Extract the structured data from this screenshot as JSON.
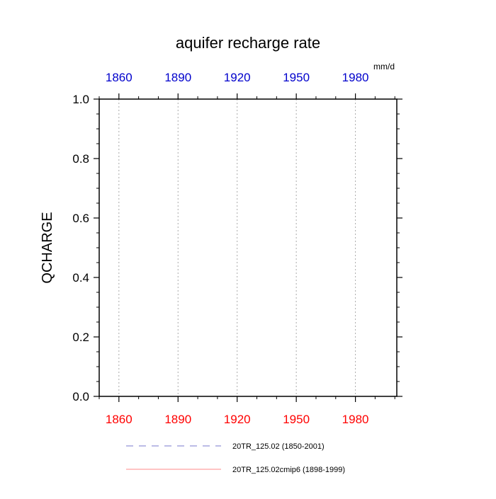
{
  "chart_data": {
    "type": "line",
    "title": "aquifer recharge rate",
    "units": "mm/d",
    "ylabel": "QCHARGE",
    "xlabel": "",
    "xlim": [
      1850,
      2001
    ],
    "ylim": [
      0,
      1.0
    ],
    "y_ticks": [
      0.0,
      0.2,
      0.4,
      0.6,
      0.8,
      1.0
    ],
    "y_tick_labels": [
      "0.0",
      "0.2",
      "0.4",
      "0.6",
      "0.8",
      "1.0"
    ],
    "y_minor_step": 0.05,
    "bottom_axis": {
      "ticks": [
        1860,
        1890,
        1920,
        1950,
        1980
      ],
      "labels": [
        "1860",
        "1890",
        "1920",
        "1950",
        "1980"
      ],
      "minor_step": 10,
      "color": "#ff0000"
    },
    "top_axis": {
      "ticks": [
        1860,
        1890,
        1920,
        1950,
        1980
      ],
      "labels": [
        "1860",
        "1890",
        "1920",
        "1950",
        "1980"
      ],
      "minor_step": 10,
      "color": "#0000cc"
    },
    "vertical_grid": true,
    "vertical_grid_at": [
      1860,
      1890,
      1920,
      1950,
      1980
    ],
    "legend_placement": "bottom",
    "series": [
      {
        "name": "20TR_125.02 (1850-2001)",
        "color": "#7777cc",
        "style": "dashed",
        "x": [
          1850,
          2001
        ],
        "y": [
          0,
          0
        ]
      },
      {
        "name": "20TR_125.02cmip6 (1898-1999)",
        "color": "#ff8888",
        "style": "solid",
        "x": [
          1898,
          1999
        ],
        "y": [
          0,
          0
        ]
      }
    ]
  }
}
